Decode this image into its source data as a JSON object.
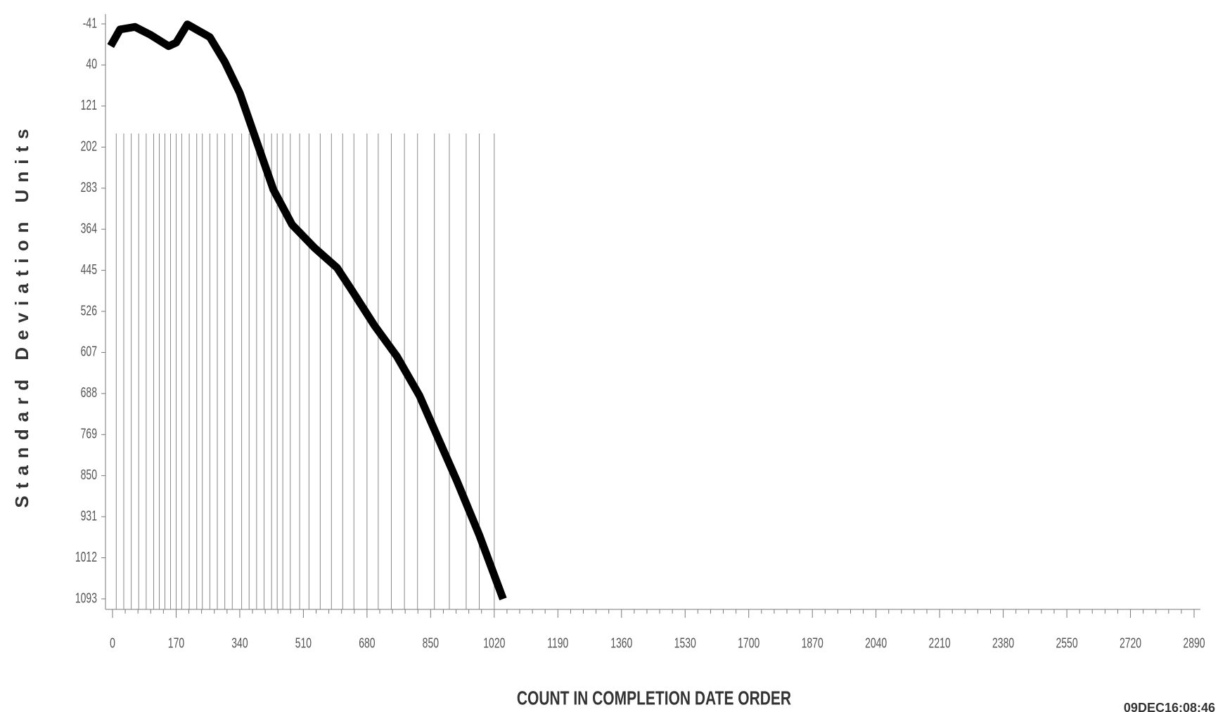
{
  "chart_data": {
    "type": "line",
    "x_label": "COUNT IN COMPLETION DATE ORDER",
    "y_label": "Standard Deviation Units",
    "timestamp": "09DEC16:08:46",
    "x": [
      0,
      20,
      60,
      100,
      150,
      170,
      200,
      260,
      300,
      340,
      380,
      430,
      480,
      540,
      600,
      640,
      700,
      760,
      820,
      870,
      920,
      980,
      1040
    ],
    "series": [
      {
        "name": "Standard Deviation Units",
        "color": "#000000",
        "values": [
          -4,
          -30,
          -35,
          -20,
          3,
          -4,
          -40,
          -15,
          34,
          95,
          180,
          286,
          355,
          401,
          440,
          485,
          554,
          615,
          692,
          776,
          860,
          967,
          1086
        ]
      }
    ],
    "reference_x": [
      10,
      30,
      50,
      70,
      90,
      110,
      125,
      140,
      155,
      170,
      185,
      205,
      225,
      240,
      260,
      280,
      300,
      320,
      345,
      365,
      385,
      405,
      425,
      440,
      455,
      475,
      500,
      525,
      555,
      585,
      615,
      645,
      680,
      710,
      745,
      780,
      815,
      860,
      900,
      945,
      980,
      1020
    ],
    "xlim": [
      0,
      2890
    ],
    "xticks": [
      0,
      170,
      340,
      510,
      680,
      850,
      1020,
      1190,
      1360,
      1530,
      1700,
      1870,
      2040,
      2210,
      2380,
      2550,
      2720,
      2890
    ],
    "ylim": [
      -41,
      1093
    ],
    "yticks": [
      -41,
      40,
      121,
      202,
      283,
      364,
      445,
      526,
      607,
      688,
      769,
      850,
      931,
      1012,
      1093
    ],
    "y_inverted": true
  }
}
